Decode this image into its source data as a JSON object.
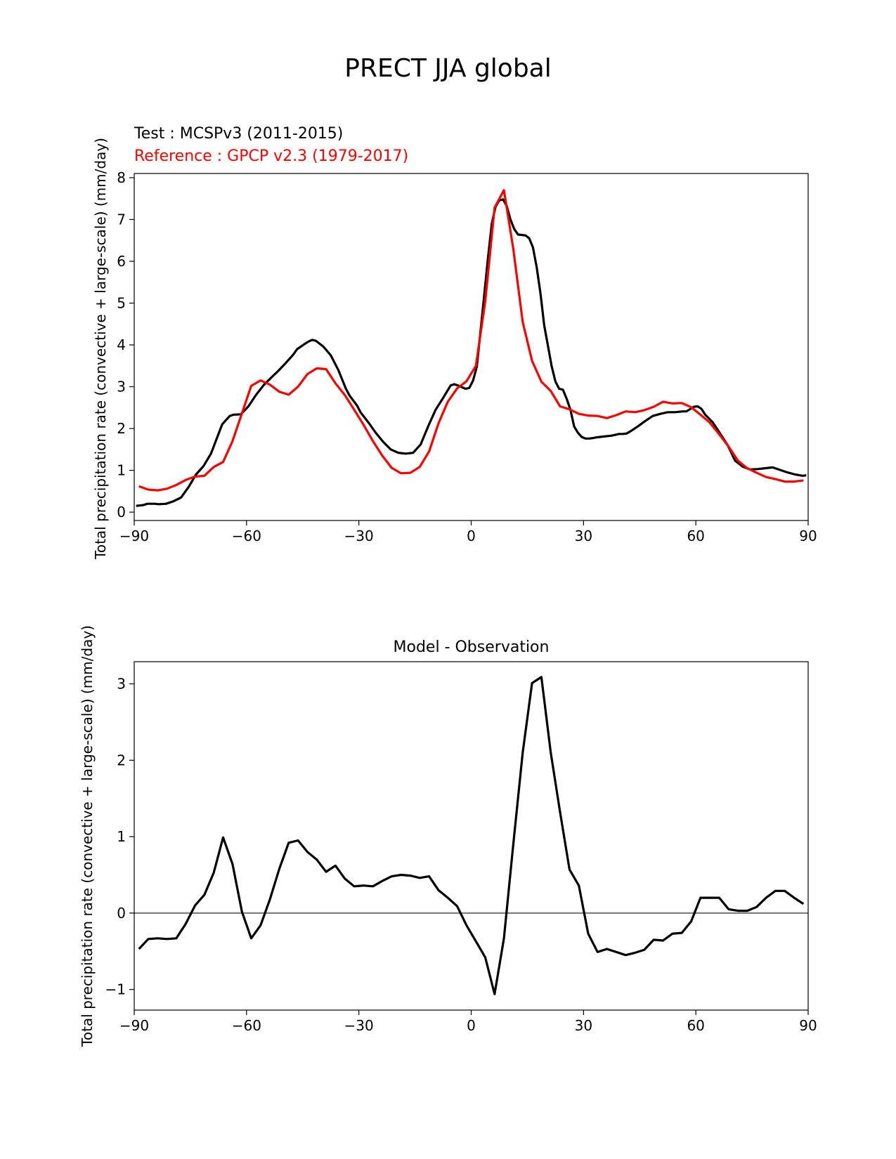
{
  "figure": {
    "title": "PRECT JJA global"
  },
  "chart_data": [
    {
      "type": "line",
      "test_label": "Test : MCSPv3 (2011-2015)",
      "reference_label": "Reference : GPCP v2.3 (1979-2017)",
      "xlabel": "",
      "ylabel": "Total precipitation rate (convective + large-scale) (mm/day)",
      "xlim": [
        -90,
        90
      ],
      "ylim": [
        -0.2,
        8.1
      ],
      "xticks": [
        -90,
        -60,
        -30,
        0,
        30,
        60,
        90
      ],
      "xtick_labels": [
        "−90",
        "−60",
        "−30",
        "0",
        "30",
        "60",
        "90"
      ],
      "yticks": [
        0,
        1,
        2,
        3,
        4,
        5,
        6,
        7,
        8
      ],
      "ytick_labels": [
        "0",
        "1",
        "2",
        "3",
        "4",
        "5",
        "6",
        "7",
        "8"
      ],
      "grid": false,
      "series": [
        {
          "name": "Test : MCSPv3 (2011-2015)",
          "color": "#000000",
          "x": [
            -89.5,
            -87.5,
            -86.5,
            -84.5,
            -83.5,
            -81.5,
            -79.5,
            -77.5,
            -75.5,
            -73.5,
            -71.5,
            -69.5,
            -68.5,
            -67.5,
            -66.5,
            -64.5,
            -63.5,
            -61.5,
            -59.5,
            -57.5,
            -55.5,
            -53.5,
            -51.5,
            -49.5,
            -47.5,
            -46.5,
            -44.5,
            -43.5,
            -42.5,
            -41.5,
            -39.5,
            -37.5,
            -35.5,
            -33.5,
            -32.5,
            -30.5,
            -29.5,
            -27.5,
            -25.5,
            -23.5,
            -21.5,
            -19.5,
            -17.5,
            -15.5,
            -13.5,
            -11.5,
            -9.5,
            -7.5,
            -5.5,
            -4.5,
            -3.5,
            -1.5,
            -0.5,
            0.5,
            1.5,
            2.5,
            3.5,
            4.5,
            5.5,
            6.5,
            7.5,
            8.5,
            9.5,
            10.5,
            11.5,
            12.5,
            13.5,
            14.5,
            15.5,
            16.5,
            17.5,
            18.5,
            19.5,
            20.5,
            21.5,
            22.5,
            23.5,
            24.5,
            25.5,
            26.5,
            27.5,
            28.5,
            29.5,
            30.5,
            31.5,
            32.5,
            33.5,
            35.5,
            37.5,
            39.5,
            40.5,
            41.5,
            42.5,
            44.5,
            46.5,
            48.5,
            50.5,
            52.5,
            54.5,
            56.5,
            57.5,
            59.5,
            60.5,
            61.5,
            62.5,
            64.5,
            66.5,
            68.5,
            70.5,
            72.5,
            74.5,
            76.5,
            78.5,
            80.5,
            82.5,
            84.5,
            86.5,
            88.5,
            89.5
          ],
          "y": [
            0.15,
            0.17,
            0.2,
            0.2,
            0.19,
            0.2,
            0.26,
            0.35,
            0.6,
            0.9,
            1.1,
            1.4,
            1.63,
            1.87,
            2.1,
            2.3,
            2.33,
            2.34,
            2.53,
            2.8,
            3.03,
            3.21,
            3.38,
            3.57,
            3.77,
            3.9,
            4.02,
            4.08,
            4.12,
            4.1,
            3.96,
            3.75,
            3.4,
            2.96,
            2.79,
            2.55,
            2.38,
            2.15,
            1.9,
            1.68,
            1.5,
            1.42,
            1.4,
            1.42,
            1.62,
            2.05,
            2.45,
            2.73,
            3.03,
            3.06,
            3.03,
            2.95,
            2.97,
            3.15,
            3.48,
            4.33,
            5.2,
            6.1,
            6.9,
            7.3,
            7.46,
            7.48,
            7.32,
            7.0,
            6.77,
            6.64,
            6.63,
            6.62,
            6.55,
            6.33,
            5.86,
            5.23,
            4.47,
            3.98,
            3.49,
            3.12,
            2.95,
            2.93,
            2.71,
            2.45,
            2.05,
            1.9,
            1.8,
            1.76,
            1.76,
            1.77,
            1.79,
            1.81,
            1.83,
            1.87,
            1.87,
            1.88,
            1.93,
            2.05,
            2.18,
            2.3,
            2.35,
            2.39,
            2.39,
            2.41,
            2.41,
            2.52,
            2.53,
            2.47,
            2.33,
            2.15,
            1.88,
            1.6,
            1.23,
            1.09,
            1.02,
            1.03,
            1.05,
            1.07,
            1.01,
            0.95,
            0.9,
            0.87,
            0.88
          ]
        },
        {
          "name": "Reference : GPCP v2.3 (1979-2017)",
          "color": "#ff0000",
          "x": [
            -88.75,
            -86.25,
            -83.75,
            -81.25,
            -78.75,
            -76.25,
            -73.75,
            -71.25,
            -68.75,
            -66.25,
            -63.75,
            -61.25,
            -58.75,
            -56.25,
            -53.75,
            -51.25,
            -48.75,
            -46.25,
            -43.75,
            -41.25,
            -38.75,
            -36.25,
            -33.75,
            -31.25,
            -28.75,
            -26.25,
            -23.75,
            -21.25,
            -18.75,
            -16.25,
            -13.75,
            -11.25,
            -8.75,
            -6.25,
            -3.75,
            -1.25,
            1.25,
            3.75,
            6.25,
            8.75,
            11.25,
            13.75,
            16.25,
            18.75,
            21.25,
            23.75,
            26.25,
            28.75,
            31.25,
            33.75,
            36.25,
            38.75,
            41.25,
            43.75,
            46.25,
            48.75,
            51.25,
            53.75,
            56.25,
            58.75,
            61.25,
            63.75,
            66.25,
            68.75,
            71.25,
            73.75,
            76.25,
            78.75,
            81.25,
            83.75,
            86.25,
            88.75
          ],
          "y": [
            0.62,
            0.54,
            0.52,
            0.56,
            0.65,
            0.77,
            0.85,
            0.87,
            1.08,
            1.2,
            1.7,
            2.36,
            3.02,
            3.15,
            3.05,
            2.88,
            2.81,
            3.0,
            3.3,
            3.44,
            3.42,
            3.08,
            2.8,
            2.45,
            2.09,
            1.7,
            1.35,
            1.06,
            0.93,
            0.94,
            1.08,
            1.45,
            2.12,
            2.64,
            2.96,
            3.13,
            3.5,
            5.04,
            7.28,
            7.7,
            6.3,
            4.55,
            3.62,
            3.12,
            2.9,
            2.53,
            2.46,
            2.35,
            2.31,
            2.3,
            2.25,
            2.32,
            2.41,
            2.39,
            2.44,
            2.52,
            2.64,
            2.6,
            2.61,
            2.51,
            2.33,
            2.14,
            1.86,
            1.57,
            1.23,
            1.05,
            0.94,
            0.84,
            0.79,
            0.73,
            0.73,
            0.76
          ]
        }
      ]
    },
    {
      "type": "line",
      "title": "Model - Observation",
      "xlabel": "",
      "ylabel": "Total precipitation rate (convective + large-scale) (mm/day)",
      "xlim": [
        -90,
        90
      ],
      "ylim": [
        -1.27,
        3.29
      ],
      "xticks": [
        -90,
        -60,
        -30,
        0,
        30,
        60,
        90
      ],
      "xtick_labels": [
        "−90",
        "−60",
        "−30",
        "0",
        "30",
        "60",
        "90"
      ],
      "yticks": [
        -1,
        0,
        1,
        2,
        3
      ],
      "ytick_labels": [
        "−1",
        "0",
        "1",
        "2",
        "3"
      ],
      "grid": false,
      "zero_line_color": "#808080",
      "series": [
        {
          "color": "#000000",
          "x": [
            -88.75,
            -86.25,
            -83.75,
            -81.25,
            -78.75,
            -76.25,
            -73.75,
            -71.25,
            -68.75,
            -66.25,
            -63.75,
            -61.25,
            -58.75,
            -56.25,
            -53.75,
            -51.25,
            -48.75,
            -46.25,
            -43.75,
            -41.25,
            -38.75,
            -36.25,
            -33.75,
            -31.25,
            -28.75,
            -26.25,
            -23.75,
            -21.25,
            -18.75,
            -16.25,
            -13.75,
            -11.25,
            -8.75,
            -6.25,
            -3.75,
            -1.25,
            1.25,
            3.75,
            6.25,
            8.75,
            11.25,
            13.75,
            16.25,
            18.75,
            21.25,
            23.75,
            26.25,
            28.75,
            31.25,
            33.75,
            36.25,
            38.75,
            41.25,
            43.75,
            46.25,
            48.75,
            51.25,
            53.75,
            56.25,
            58.75,
            61.25,
            63.75,
            66.25,
            68.75,
            71.25,
            73.75,
            76.25,
            78.75,
            81.25,
            83.75,
            86.25,
            88.75
          ],
          "y": [
            -0.47,
            -0.34,
            -0.33,
            -0.34,
            -0.33,
            -0.14,
            0.1,
            0.24,
            0.53,
            0.99,
            0.64,
            0.02,
            -0.33,
            -0.16,
            0.18,
            0.58,
            0.92,
            0.95,
            0.8,
            0.7,
            0.54,
            0.62,
            0.45,
            0.35,
            0.36,
            0.35,
            0.42,
            0.48,
            0.5,
            0.49,
            0.46,
            0.48,
            0.3,
            0.2,
            0.09,
            -0.16,
            -0.37,
            -0.58,
            -1.06,
            -0.33,
            0.9,
            2.1,
            3.01,
            3.09,
            2.1,
            1.32,
            0.57,
            0.36,
            -0.27,
            -0.51,
            -0.47,
            -0.51,
            -0.55,
            -0.52,
            -0.48,
            -0.35,
            -0.36,
            -0.27,
            -0.26,
            -0.11,
            0.2,
            0.2,
            0.2,
            0.05,
            0.03,
            0.03,
            0.08,
            0.2,
            0.29,
            0.29,
            0.2,
            0.12
          ]
        }
      ]
    }
  ]
}
